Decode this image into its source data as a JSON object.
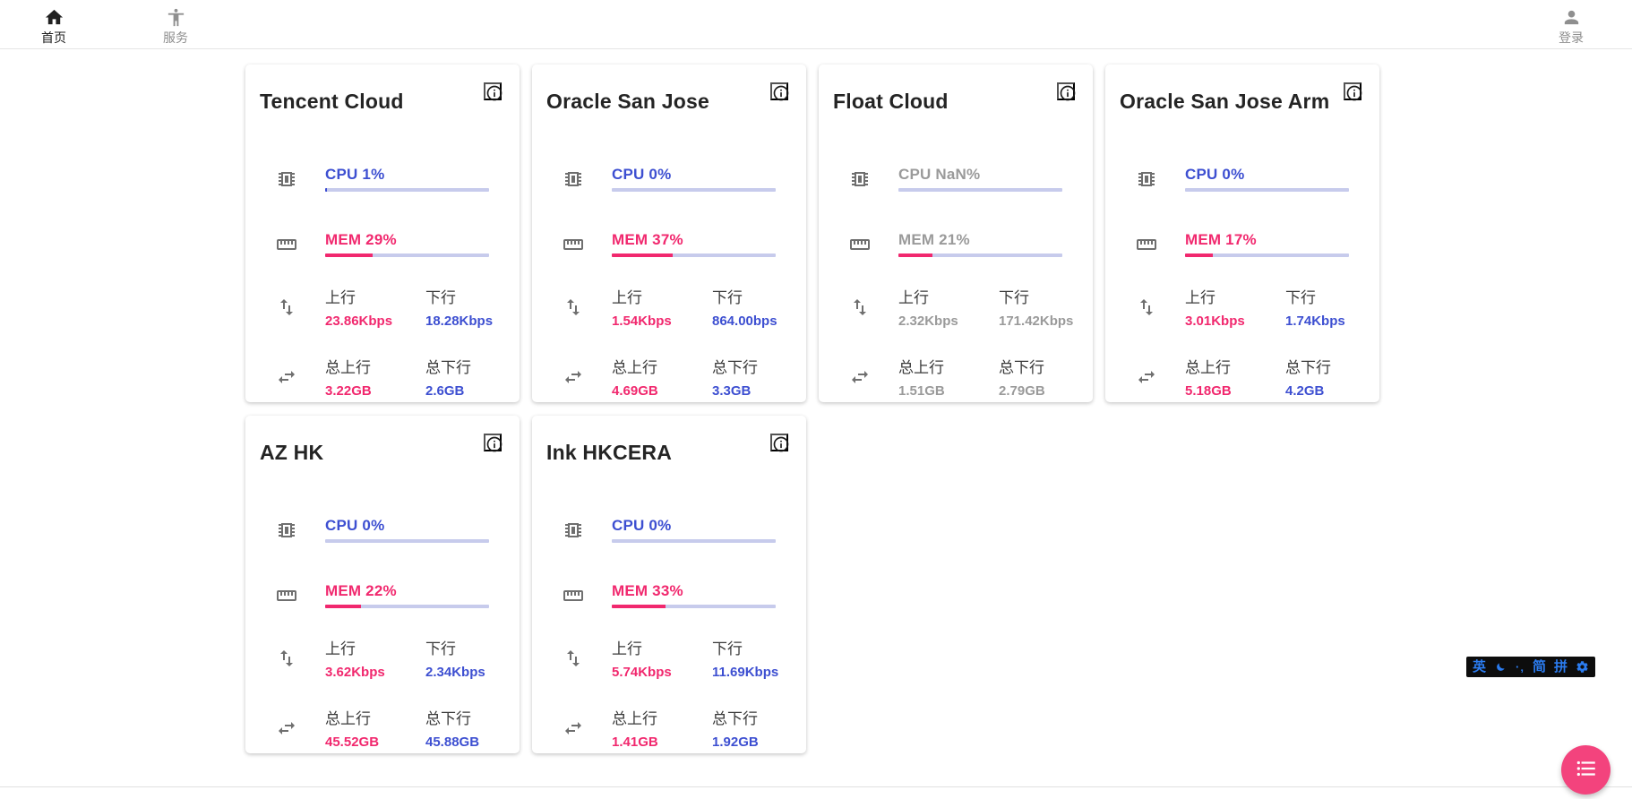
{
  "nav": {
    "home": {
      "label": "首页"
    },
    "services": {
      "label": "服务"
    },
    "login": {
      "label": "登录"
    }
  },
  "labels": {
    "up": "上行",
    "down": "下行",
    "total_up": "总上行",
    "total_down": "总下行"
  },
  "colors": {
    "accent_blue": "#3d4fd1",
    "accent_pink": "#f1286e",
    "bar_track": "#c7cbec",
    "stale_gray": "#9a9a9a",
    "fab_pink": "#f3437d",
    "ime_blue": "#2b7cf0"
  },
  "ime": {
    "lang": "英",
    "punct": "·‚",
    "simplified": "简",
    "pinyin": "拼"
  },
  "cards": [
    {
      "title": "Tencent Cloud",
      "state": "online",
      "cpu_text": "CPU 1%",
      "cpu_pct": 1,
      "mem_text": "MEM 29%",
      "mem_pct": 29,
      "up": "23.86Kbps",
      "down": "18.28Kbps",
      "total_up": "3.22GB",
      "total_down": "2.6GB"
    },
    {
      "title": "Oracle San Jose",
      "state": "online",
      "cpu_text": "CPU 0%",
      "cpu_pct": 0,
      "mem_text": "MEM 37%",
      "mem_pct": 37,
      "up": "1.54Kbps",
      "down": "864.00bps",
      "total_up": "4.69GB",
      "total_down": "3.3GB"
    },
    {
      "title": "Float Cloud",
      "state": "stale",
      "cpu_text": "CPU NaN%",
      "cpu_pct": 0,
      "mem_text": "MEM 21%",
      "mem_pct": 21,
      "up": "2.32Kbps",
      "down": "171.42Kbps",
      "total_up": "1.51GB",
      "total_down": "2.79GB"
    },
    {
      "title": "Oracle San Jose Arm",
      "state": "online",
      "cpu_text": "CPU 0%",
      "cpu_pct": 0,
      "mem_text": "MEM 17%",
      "mem_pct": 17,
      "up": "3.01Kbps",
      "down": "1.74Kbps",
      "total_up": "5.18GB",
      "total_down": "4.2GB"
    },
    {
      "title": "AZ HK",
      "state": "online",
      "cpu_text": "CPU 0%",
      "cpu_pct": 0,
      "mem_text": "MEM 22%",
      "mem_pct": 22,
      "up": "3.62Kbps",
      "down": "2.34Kbps",
      "total_up": "45.52GB",
      "total_down": "45.88GB"
    },
    {
      "title": "Ink HKCERA",
      "state": "online",
      "cpu_text": "CPU 0%",
      "cpu_pct": 0,
      "mem_text": "MEM 33%",
      "mem_pct": 33,
      "up": "5.74Kbps",
      "down": "11.69Kbps",
      "total_up": "1.41GB",
      "total_down": "1.92GB"
    }
  ]
}
